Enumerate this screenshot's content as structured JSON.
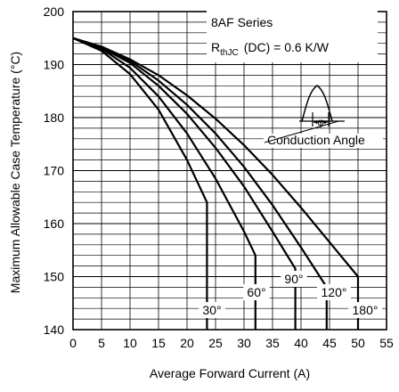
{
  "chart_data": {
    "type": "line",
    "xlabel": "Average Forward Current (A)",
    "ylabel": "Maximum Allowable Case Temperature (°C)",
    "xlim": [
      0,
      55
    ],
    "ylim": [
      140,
      200
    ],
    "xticks": [
      "0",
      "5",
      "10",
      "15",
      "20",
      "25",
      "30",
      "35",
      "40",
      "45",
      "50",
      "55"
    ],
    "yticks": [
      "140",
      "150",
      "160",
      "170",
      "180",
      "190",
      "200"
    ],
    "grid": true,
    "annotation": {
      "series_name": "8AF Series",
      "rth_symbol": "R",
      "rth_subscript": "thJC",
      "rth_value": "(DC) = 0.6 K/W",
      "conduction_label": "Conduction Angle",
      "phi_symbol": "φ"
    },
    "series": [
      {
        "label": "30°",
        "points": [
          [
            0,
            195
          ],
          [
            5,
            192.6
          ],
          [
            10,
            188.2
          ],
          [
            15,
            181.5
          ],
          [
            20,
            172
          ],
          [
            23.5,
            164
          ],
          [
            23.5,
            140
          ]
        ]
      },
      {
        "label": "60°",
        "points": [
          [
            0,
            195
          ],
          [
            5,
            193
          ],
          [
            10,
            189.4
          ],
          [
            15,
            184
          ],
          [
            20,
            177
          ],
          [
            25,
            168.5
          ],
          [
            30,
            158.5
          ],
          [
            32,
            154
          ],
          [
            32,
            140
          ]
        ]
      },
      {
        "label": "90°",
        "points": [
          [
            0,
            195
          ],
          [
            5,
            193.2
          ],
          [
            10,
            190.3
          ],
          [
            15,
            186
          ],
          [
            20,
            180.7
          ],
          [
            25,
            174.3
          ],
          [
            30,
            167
          ],
          [
            35,
            158.5
          ],
          [
            39,
            151.5
          ],
          [
            39,
            140
          ]
        ]
      },
      {
        "label": "120°",
        "points": [
          [
            0,
            195
          ],
          [
            5,
            193.3
          ],
          [
            10,
            190.7
          ],
          [
            15,
            187
          ],
          [
            20,
            182.4
          ],
          [
            25,
            177
          ],
          [
            30,
            170.7
          ],
          [
            35,
            163.5
          ],
          [
            40,
            155.5
          ],
          [
            44.5,
            148
          ],
          [
            44.5,
            140
          ]
        ]
      },
      {
        "label": "180°",
        "points": [
          [
            0,
            195
          ],
          [
            5,
            193.4
          ],
          [
            10,
            191
          ],
          [
            15,
            188
          ],
          [
            20,
            184.2
          ],
          [
            25,
            179.8
          ],
          [
            30,
            174.8
          ],
          [
            35,
            169.2
          ],
          [
            40,
            163
          ],
          [
            45,
            156.5
          ],
          [
            50,
            150
          ],
          [
            50,
            140
          ]
        ]
      }
    ]
  }
}
